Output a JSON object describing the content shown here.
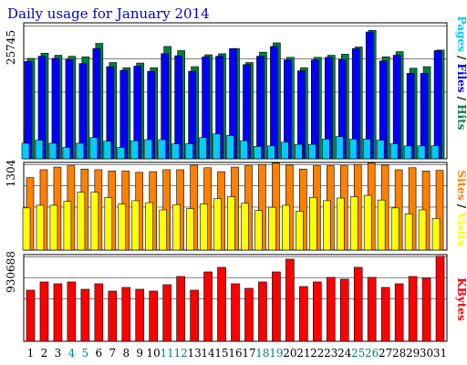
{
  "chart_data": [
    {
      "type": "bar",
      "title": "Daily usage for January 2014",
      "categories": [
        "1",
        "2",
        "3",
        "4",
        "5",
        "6",
        "7",
        "8",
        "9",
        "10",
        "11",
        "12",
        "13",
        "14",
        "15",
        "16",
        "17",
        "18",
        "19",
        "20",
        "21",
        "22",
        "23",
        "24",
        "25",
        "26",
        "27",
        "28",
        "29",
        "30",
        "31"
      ],
      "weekend_days": [
        "4",
        "5",
        "11",
        "12",
        "18",
        "19",
        "25",
        "26"
      ],
      "y_max_label": "25745",
      "ylim": [
        0,
        25745
      ],
      "right_label": [
        {
          "text": "Pages",
          "color": "#00ccff"
        },
        {
          "text": " / ",
          "color": "#000000"
        },
        {
          "text": "Files",
          "color": "#0000ff"
        },
        {
          "text": " / ",
          "color": "#000000"
        },
        {
          "text": "Hits",
          "color": "#008040"
        }
      ],
      "series": [
        {
          "name": "Hits",
          "color": "#008040",
          "values": [
            19400,
            20400,
            20000,
            19800,
            19700,
            22300,
            18600,
            17600,
            18500,
            17600,
            21700,
            20900,
            17800,
            20100,
            20300,
            21300,
            18600,
            20600,
            22400,
            19600,
            17600,
            19600,
            20000,
            20200,
            21600,
            24800,
            19700,
            20700,
            17500,
            17800,
            21000
          ]
        },
        {
          "name": "Files",
          "color": "#0000ff",
          "values": [
            18800,
            19800,
            19400,
            19200,
            18400,
            21300,
            17800,
            17100,
            17900,
            16900,
            20300,
            19900,
            16900,
            19700,
            19800,
            21300,
            18200,
            19800,
            21700,
            19100,
            17000,
            19100,
            19600,
            19200,
            21300,
            24500,
            18900,
            20000,
            16500,
            16500,
            20900
          ]
        },
        {
          "name": "Pages",
          "color": "#00ccff",
          "values": [
            3000,
            3600,
            3000,
            2200,
            3000,
            4100,
            3400,
            2200,
            3500,
            3700,
            3700,
            2900,
            2900,
            4100,
            4800,
            4500,
            3500,
            2400,
            2500,
            3200,
            2800,
            2800,
            3800,
            4300,
            3800,
            3800,
            3600,
            2900,
            2500,
            2500,
            2500
          ]
        }
      ]
    },
    {
      "type": "bar",
      "categories": [
        "1",
        "2",
        "3",
        "4",
        "5",
        "6",
        "7",
        "8",
        "9",
        "10",
        "11",
        "12",
        "13",
        "14",
        "15",
        "16",
        "17",
        "18",
        "19",
        "20",
        "21",
        "22",
        "23",
        "24",
        "25",
        "26",
        "27",
        "28",
        "29",
        "30",
        "31"
      ],
      "y_max_label": "1304",
      "ylim": [
        0,
        1304
      ],
      "right_label": [
        {
          "text": "Sites",
          "color": "#ff8000"
        },
        {
          "text": " / ",
          "color": "#000000"
        },
        {
          "text": "Visits",
          "color": "#ffff00"
        }
      ],
      "series": [
        {
          "name": "Sites",
          "color": "#ff8000",
          "values": [
            1100,
            1220,
            1260,
            1280,
            1230,
            1220,
            1200,
            1200,
            1180,
            1190,
            1220,
            1220,
            1290,
            1250,
            1190,
            1260,
            1280,
            1300,
            1320,
            1290,
            1230,
            1280,
            1280,
            1280,
            1300,
            1320,
            1290,
            1220,
            1250,
            1200,
            1210
          ]
        },
        {
          "name": "Visits",
          "color": "#ffff00",
          "values": [
            640,
            680,
            680,
            740,
            880,
            880,
            800,
            700,
            750,
            720,
            610,
            690,
            630,
            700,
            780,
            810,
            710,
            600,
            650,
            680,
            590,
            800,
            750,
            790,
            810,
            830,
            760,
            640,
            550,
            610,
            480
          ]
        }
      ]
    },
    {
      "type": "bar",
      "categories": [
        "1",
        "2",
        "3",
        "4",
        "5",
        "6",
        "7",
        "8",
        "9",
        "10",
        "11",
        "12",
        "13",
        "14",
        "15",
        "16",
        "17",
        "18",
        "19",
        "20",
        "21",
        "22",
        "23",
        "24",
        "25",
        "26",
        "27",
        "28",
        "29",
        "30",
        "31"
      ],
      "y_max_label": "930688",
      "ylim": [
        0,
        930688
      ],
      "right_label": [
        {
          "text": "KBytes",
          "color": "#ff0000"
        }
      ],
      "series": [
        {
          "name": "KBytes",
          "color": "#ff0000",
          "values": [
            560000,
            650000,
            630000,
            650000,
            570000,
            630000,
            550000,
            590000,
            570000,
            550000,
            620000,
            710000,
            560000,
            760000,
            810000,
            630000,
            580000,
            650000,
            760000,
            900000,
            600000,
            650000,
            700000,
            680000,
            810000,
            700000,
            590000,
            630000,
            710000,
            690000,
            930688
          ]
        }
      ]
    }
  ]
}
